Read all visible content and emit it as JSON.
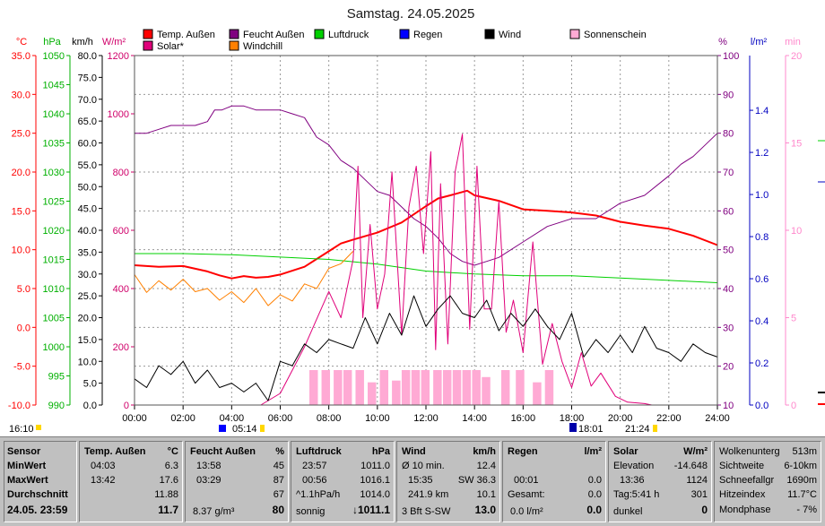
{
  "title": "Samstag. 24.05.2025",
  "left_time_label": "16:10",
  "sunrise": "05:14",
  "sunset": "21:24",
  "moonrise": "18:01",
  "axis_units": {
    "temp": "°C",
    "pressure": "hPa",
    "wind": "km/h",
    "solar": "W/m²",
    "humidity": "%",
    "rain": "l/m²",
    "sun_min": "min"
  },
  "axis_ticks": {
    "temp": [
      "35.0",
      "30.0",
      "25.0",
      "20.0",
      "15.0",
      "10.0",
      "5.0",
      "0.0",
      "-5.0",
      "-10.0"
    ],
    "pressure": [
      "1050",
      "1045",
      "1040",
      "1035",
      "1030",
      "1025",
      "1020",
      "1015",
      "1010",
      "1005",
      "1000",
      "995",
      "990"
    ],
    "wind": [
      "80.0",
      "75.0",
      "70.0",
      "65.0",
      "60.0",
      "55.0",
      "50.0",
      "45.0",
      "40.0",
      "35.0",
      "30.0",
      "25.0",
      "20.0",
      "15.0",
      "10.0",
      "5.0",
      "0.0"
    ],
    "solar": [
      "1200",
      "1000",
      "800",
      "600",
      "400",
      "200",
      "0"
    ],
    "humidity": [
      "100",
      "90",
      "80",
      "70",
      "60",
      "50",
      "40",
      "30",
      "20",
      "10"
    ],
    "rain": [
      "1.4",
      "1.2",
      "1.0",
      "0.8",
      "0.6",
      "0.4",
      "0.2",
      "0.0"
    ],
    "sun_min": [
      "20",
      "15",
      "10",
      "5",
      "0"
    ],
    "time": [
      "00:00",
      "02:00",
      "04:00",
      "06:00",
      "08:00",
      "10:00",
      "12:00",
      "14:00",
      "16:00",
      "18:00",
      "20:00",
      "22:00",
      "24:00"
    ]
  },
  "legend": [
    {
      "label": "Temp. Außen",
      "color": "#ff0000"
    },
    {
      "label": "Feucht Außen",
      "color": "#800080"
    },
    {
      "label": "Luftdruck",
      "color": "#00d000"
    },
    {
      "label": "Regen",
      "color": "#0000ff"
    },
    {
      "label": "Wind",
      "color": "#000000"
    },
    {
      "label": "Sonnenschein",
      "color": "#ffaad4"
    },
    {
      "label": "Solar*",
      "color": "#e0007a"
    },
    {
      "label": "Windchill",
      "color": "#ff8000"
    }
  ],
  "chart_data": {
    "type": "line",
    "title": "Samstag. 24.05.2025",
    "x_unit": "hours",
    "xlim": [
      0,
      24
    ],
    "ylim": {
      "temp": [
        -10,
        35
      ],
      "pressure": [
        990,
        1050
      ],
      "wind": [
        0,
        80
      ],
      "solar": [
        0,
        1200
      ],
      "humidity": [
        10,
        100
      ],
      "rain": [
        0,
        1.66
      ],
      "sun_min": [
        0,
        20
      ]
    },
    "series": [
      {
        "name": "Temp. Außen",
        "axis": "temp",
        "color": "#ff0000",
        "x": [
          0,
          1,
          2,
          3,
          3.5,
          4,
          4.5,
          5,
          5.5,
          6,
          7,
          8,
          8.5,
          9,
          10,
          11,
          12,
          12.5,
          13,
          13.7,
          14,
          15,
          16,
          17,
          18,
          19,
          20,
          21,
          22,
          23,
          24
        ],
        "y": [
          8.0,
          7.8,
          7.9,
          7.2,
          6.7,
          6.3,
          6.6,
          6.4,
          6.5,
          6.8,
          7.8,
          9.8,
          10.8,
          11.3,
          12.2,
          13.5,
          15.6,
          16.6,
          17.0,
          17.6,
          17.0,
          16.3,
          15.2,
          15.0,
          14.8,
          14.4,
          13.6,
          13.1,
          12.7,
          11.8,
          10.6
        ]
      },
      {
        "name": "Feucht Außen",
        "axis": "humidity",
        "color": "#800080",
        "x": [
          0,
          0.5,
          1,
          1.5,
          2,
          2.5,
          3,
          3.3,
          3.6,
          4,
          4.5,
          5,
          5.5,
          6,
          6.5,
          7,
          7.5,
          8,
          8.5,
          9,
          9.5,
          10,
          10.5,
          11,
          11.5,
          12,
          12.5,
          13,
          13.5,
          14,
          14.5,
          15,
          16,
          17,
          18,
          19,
          20,
          21,
          22,
          22.5,
          23,
          23.5,
          24
        ],
        "y": [
          80,
          80,
          81,
          82,
          82,
          82,
          83,
          86,
          86,
          87,
          87,
          86,
          86,
          86,
          85,
          84,
          79,
          77,
          73,
          71,
          68,
          65,
          64,
          61,
          58,
          56,
          53,
          49,
          47,
          46,
          47,
          48,
          52,
          56,
          58,
          58,
          62,
          64,
          69,
          72,
          74,
          77,
          80
        ]
      },
      {
        "name": "Luftdruck",
        "axis": "pressure",
        "color": "#00d000",
        "x": [
          0,
          2,
          4,
          6,
          8,
          10,
          12,
          14,
          16,
          18,
          20,
          22,
          24
        ],
        "y": [
          1016.0,
          1016.0,
          1015.8,
          1015.4,
          1015.0,
          1014.2,
          1013.0,
          1012.5,
          1012.2,
          1012.2,
          1011.8,
          1011.4,
          1011.0
        ]
      },
      {
        "name": "Windchill",
        "axis": "temp",
        "color": "#ff8000",
        "x": [
          0,
          0.5,
          1,
          1.5,
          2,
          2.5,
          3,
          3.5,
          4,
          4.5,
          5,
          5.5,
          6,
          6.5,
          7,
          7.5,
          8,
          8.5,
          9
        ],
        "y": [
          6.8,
          4.5,
          6.0,
          4.8,
          6.2,
          4.6,
          5.0,
          3.5,
          4.6,
          3.2,
          5.0,
          2.8,
          4.2,
          3.4,
          5.6,
          5.0,
          7.6,
          8.2,
          9.8
        ]
      },
      {
        "name": "Solar*",
        "axis": "solar",
        "color": "#e0007a",
        "x": [
          5.2,
          6,
          7,
          8,
          8.5,
          9,
          9.2,
          9.4,
          9.7,
          10,
          10.3,
          10.6,
          11,
          11.3,
          11.6,
          11.9,
          12.2,
          12.4,
          12.6,
          12.9,
          13.2,
          13.5,
          13.8,
          14.1,
          14.4,
          14.7,
          15,
          15.3,
          15.6,
          16,
          16.4,
          16.8,
          17.2,
          17.6,
          18,
          18.4,
          18.8,
          19.2,
          19.8,
          20.3,
          21,
          21.3
        ],
        "y": [
          0,
          40,
          200,
          390,
          300,
          500,
          820,
          300,
          620,
          330,
          450,
          800,
          240,
          680,
          820,
          520,
          870,
          190,
          760,
          210,
          800,
          930,
          260,
          820,
          330,
          330,
          700,
          250,
          360,
          180,
          560,
          140,
          280,
          150,
          60,
          180,
          65,
          110,
          30,
          10,
          5,
          0
        ]
      },
      {
        "name": "Wind",
        "axis": "wind",
        "color": "#000000",
        "x": [
          0,
          0.5,
          1,
          1.5,
          2,
          2.5,
          3,
          3.5,
          4,
          4.5,
          5,
          5.5,
          6,
          6.5,
          7,
          7.5,
          8,
          8.5,
          9,
          9.5,
          10,
          10.5,
          11,
          11.5,
          12,
          12.5,
          13,
          13.5,
          14,
          14.5,
          15,
          15.5,
          16,
          16.5,
          17,
          17.5,
          18,
          18.5,
          19,
          19.5,
          20,
          20.5,
          21,
          21.5,
          22,
          22.5,
          23,
          23.5,
          24
        ],
        "y": [
          6,
          4,
          9,
          7,
          10,
          5,
          8,
          4,
          5,
          3,
          5,
          1,
          10,
          9,
          14,
          12,
          15,
          14,
          13,
          20,
          14,
          21,
          16,
          25,
          18,
          22,
          25,
          21,
          20,
          24,
          17,
          21,
          18,
          22,
          18,
          15,
          21,
          11,
          15,
          12,
          16,
          12,
          18,
          13,
          12,
          10,
          14,
          12,
          11
        ]
      },
      {
        "name": "Sonnenschein",
        "axis": "sun_min",
        "color": "#ffaad4",
        "type": "bar",
        "x": [
          7.2,
          7.7,
          8.2,
          8.6,
          9.1,
          9.6,
          10.1,
          10.6,
          11.0,
          11.4,
          11.8,
          12.3,
          12.7,
          13.1,
          13.5,
          13.9,
          14.3,
          15.1,
          15.7,
          16.4,
          16.9
        ],
        "y": [
          2,
          2,
          2,
          2,
          2,
          1.3,
          2,
          1.4,
          2,
          2,
          2,
          2,
          2,
          2,
          2,
          2,
          1.6,
          2,
          2,
          1.3,
          2
        ]
      }
    ]
  },
  "stats": {
    "sensor": {
      "header": "Sensor",
      "min": "MinWert",
      "max": "MaxWert",
      "avg": "Durchschnitt",
      "date": "24.05. 23:59"
    },
    "temp": {
      "header": "Temp. Außen",
      "unit": "°C",
      "min_time": "04:03",
      "min_val": "6.3",
      "max_time": "13:42",
      "max_val": "17.6",
      "avg_val": "11.88",
      "current": "11.7"
    },
    "hum": {
      "header": "Feucht Außen",
      "unit": "%",
      "min_time": "13:58",
      "min_val": "45",
      "max_time": "03:29",
      "max_val": "87",
      "avg_val": "67",
      "extra": "8.37 g/m³",
      "current": "80"
    },
    "press": {
      "header": "Luftdruck",
      "unit": "hPa",
      "min_time": "23:57",
      "min_val": "1011.0",
      "max_time": "00:56",
      "max_val": "1016.1",
      "trend": "^1.1hPa/h",
      "avg_val": "1014.0",
      "weather": "sonnig",
      "current": "↓1011.1"
    },
    "wind": {
      "header": "Wind",
      "unit": "km/h",
      "l1a": "Ø 10 min.",
      "l1b": "12.4",
      "l2a": "15:35",
      "l2b": "SW 36.3",
      "l3a": "241.9 km",
      "l3b": "10.1",
      "l4a": "3 Bft S-SW",
      "current": "13.0"
    },
    "rain": {
      "header": "Regen",
      "unit": "l/m²",
      "l2a": "00:01",
      "l2b": "0.0",
      "l3a": "Gesamt:",
      "l3b": "0.0",
      "l4a": "0.0 l/m²",
      "current": "0.0"
    },
    "solar": {
      "header": "Solar",
      "unit": "W/m²",
      "l1a": "Elevation",
      "l1b": "-14.648",
      "l2a": "13:36",
      "l2b": "1124",
      "l3a": "Tag:5:41 h",
      "l3b": "301",
      "l4a": "dunkel",
      "current": "0"
    },
    "extra": [
      {
        "label": "Wolkenunterg",
        "value": "513m"
      },
      {
        "label": "Sichtweite",
        "value": "6-10km"
      },
      {
        "label": "Schneefallgr",
        "value": "1690m"
      },
      {
        "label": "Hitzeindex",
        "value": "11.7°C"
      },
      {
        "label": "Mondphase",
        "value": "- 7%"
      }
    ]
  }
}
